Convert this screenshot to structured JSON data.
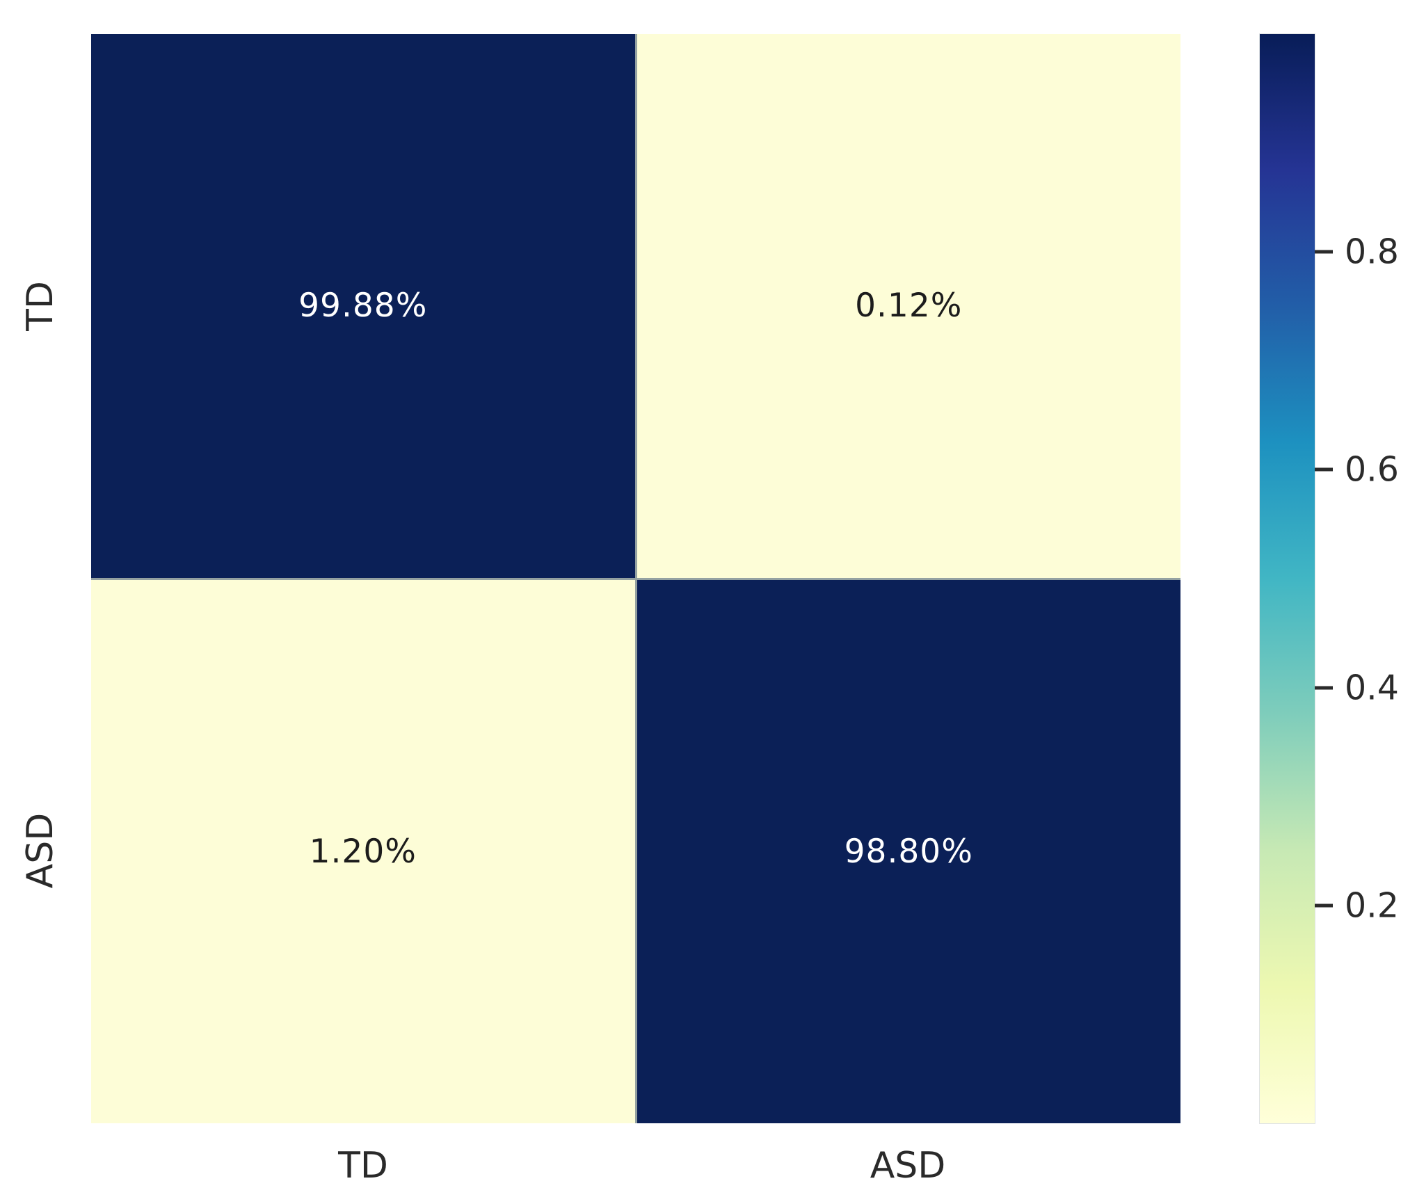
{
  "chart_data": {
    "type": "heatmap",
    "subtype": "confusion_matrix",
    "title": "",
    "xlabel": "",
    "ylabel": "",
    "x_tick_labels": [
      "TD",
      "ASD"
    ],
    "y_tick_labels": [
      "TD",
      "ASD"
    ],
    "rows": [
      {
        "y": "TD",
        "cells": [
          {
            "x": "TD",
            "value": 0.9988,
            "label": "99.88%"
          },
          {
            "x": "ASD",
            "value": 0.0012,
            "label": "0.12%"
          }
        ]
      },
      {
        "y": "ASD",
        "cells": [
          {
            "x": "TD",
            "value": 0.012,
            "label": "1.20%"
          },
          {
            "x": "ASD",
            "value": 0.988,
            "label": "98.80%"
          }
        ]
      }
    ],
    "colormap": "YlGnBu",
    "grid": false,
    "legend_position": "none",
    "colorbar": {
      "position": "right",
      "range": [
        0,
        1
      ],
      "ticks": [
        {
          "value": 0.8,
          "label": "0.8"
        },
        {
          "value": 0.6,
          "label": "0.6"
        },
        {
          "value": 0.4,
          "label": "0.4"
        },
        {
          "value": 0.2,
          "label": "0.2"
        }
      ],
      "gradient_stops_bottom_to_top": [
        "#ffffd9",
        "#edf8b1",
        "#c7e9b4",
        "#7fcdbb",
        "#41b6c4",
        "#1d91c0",
        "#225ea8",
        "#253494",
        "#081d58"
      ]
    },
    "colors": {
      "cell_high": "#0b2057",
      "cell_low": "#fdfdd7",
      "cell_gap_line": "#94a1a1",
      "annot_on_dark": "#ffffff",
      "annot_on_light": "#1c1c1c",
      "tick_label": "#2a2a2a"
    }
  }
}
